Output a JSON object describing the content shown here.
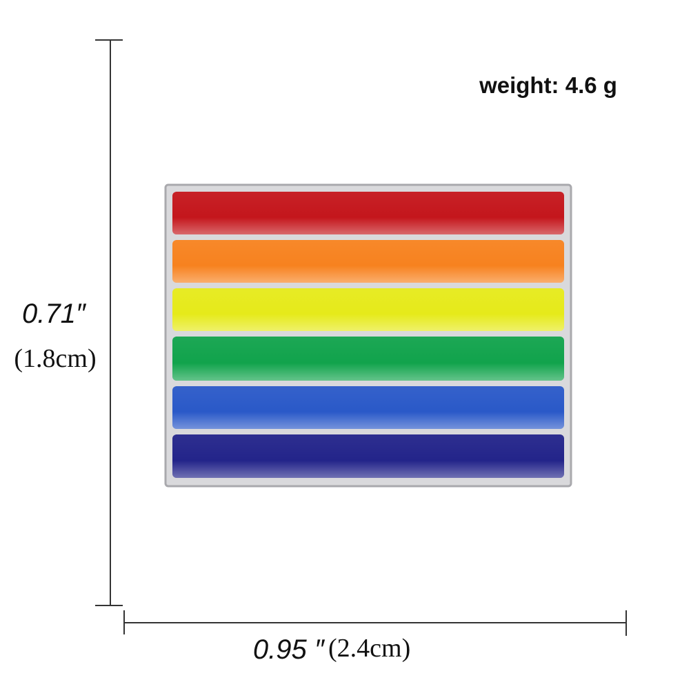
{
  "weight": {
    "label": "weight: 4.6 g"
  },
  "height": {
    "inches": "0.71″",
    "cm": "(1.8cm)"
  },
  "width": {
    "inches": "0.95 ″",
    "cm": "(2.4cm)"
  }
}
